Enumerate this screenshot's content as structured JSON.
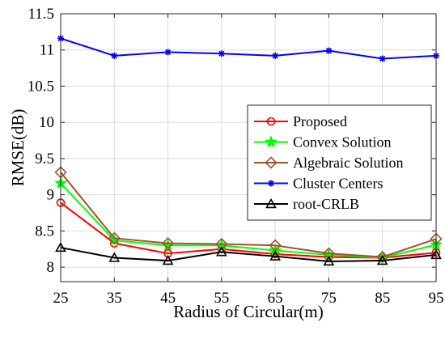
{
  "chart_data": {
    "type": "line",
    "xlabel": "Radius of Circular(m)",
    "ylabel": "RMSE(dB)",
    "x": [
      25,
      35,
      45,
      55,
      65,
      75,
      85,
      95
    ],
    "xlim": [
      25,
      95
    ],
    "ylim": [
      7.8,
      11.5
    ],
    "xticks": [
      "25",
      "35",
      "45",
      "55",
      "65",
      "75",
      "85",
      "95"
    ],
    "yticks": [
      "8",
      "8.5",
      "9",
      "9.5",
      "10",
      "10.5",
      "11",
      "11.5"
    ],
    "grid": true,
    "legend_position": "right",
    "series": [
      {
        "name": "Proposed",
        "color": "#ff0000",
        "marker": "circle",
        "values": [
          8.89,
          8.33,
          8.19,
          8.25,
          8.18,
          8.14,
          8.13,
          8.2
        ]
      },
      {
        "name": "Convex Solution",
        "color": "#00ff00",
        "marker": "star",
        "values": [
          9.16,
          8.37,
          8.3,
          8.3,
          8.23,
          8.17,
          8.13,
          8.31
        ]
      },
      {
        "name": "Algebraic Solution",
        "color": "#a0522d",
        "marker": "diamond",
        "values": [
          9.31,
          8.4,
          8.33,
          8.32,
          8.3,
          8.19,
          8.14,
          8.39
        ]
      },
      {
        "name": "Cluster Centers",
        "color": "#0000ff",
        "marker": "asterisk",
        "values": [
          11.16,
          10.92,
          10.97,
          10.95,
          10.92,
          10.99,
          10.88,
          10.92
        ]
      },
      {
        "name": "root-CRLB",
        "color": "#000000",
        "marker": "triangle",
        "values": [
          8.27,
          8.13,
          8.09,
          8.21,
          8.15,
          8.08,
          8.09,
          8.17
        ]
      }
    ]
  }
}
